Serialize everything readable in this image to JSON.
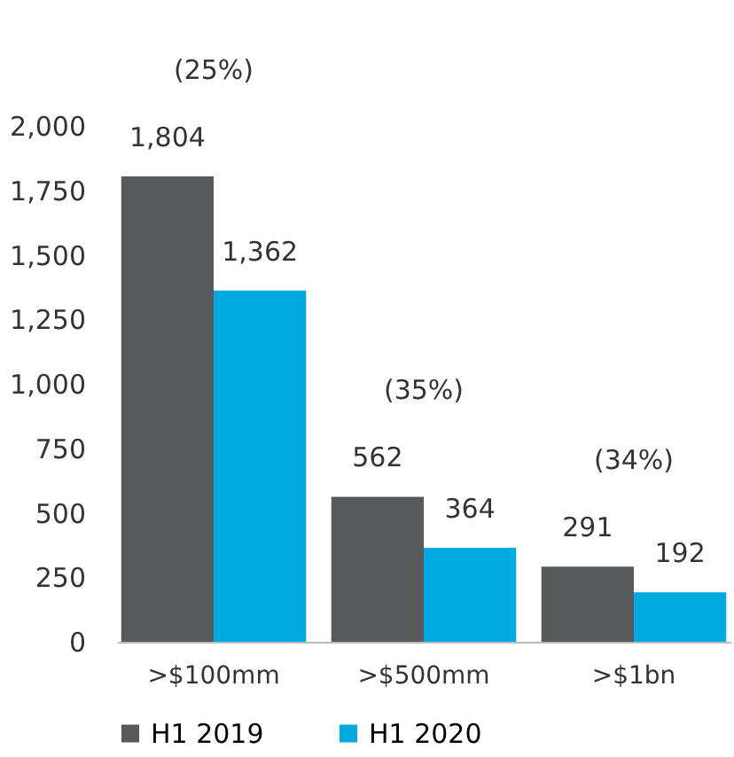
{
  "chart_data": {
    "type": "bar",
    "categories": [
      ">$100mm",
      ">$500mm",
      ">$1bn"
    ],
    "series": [
      {
        "name": "H1 2019",
        "color": "#58595b",
        "values": [
          1804,
          562,
          291
        ],
        "value_labels": [
          "1,804",
          "562",
          "291"
        ]
      },
      {
        "name": "H1 2020",
        "color": "#00a9e0",
        "values": [
          1362,
          364,
          192
        ],
        "value_labels": [
          "1,362",
          "364",
          "192"
        ]
      }
    ],
    "ylim": [
      0,
      2000
    ],
    "yticks": [
      0,
      250,
      500,
      750,
      {
        "value": 1000,
        "label": "1,000"
      },
      {
        "value": 1250,
        "label": "1,250"
      },
      {
        "value": 1500,
        "label": "1,500"
      },
      {
        "value": 1750,
        "label": "1,750"
      },
      {
        "value": 2000,
        "label": "2,000"
      }
    ],
    "grid": false,
    "legend": "bottom",
    "annotations": [
      "(25%)",
      "(35%)",
      "(34%)"
    ]
  }
}
